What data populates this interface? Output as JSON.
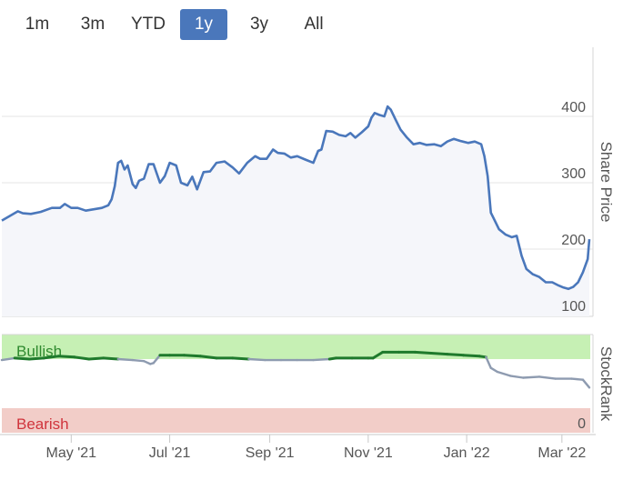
{
  "range_buttons": [
    {
      "label": "1m",
      "active": false
    },
    {
      "label": "3m",
      "active": false
    },
    {
      "label": "YTD",
      "active": false
    },
    {
      "label": "1y",
      "active": true
    },
    {
      "label": "3y",
      "active": false
    },
    {
      "label": "All",
      "active": false
    }
  ],
  "colors": {
    "price_line": "#4a77bb",
    "price_fill": "#f5f6fa",
    "bullish_band": "#c6f0b4",
    "bearish_band": "#f2cdc8",
    "bullish_text": "#2f8a2f",
    "bearish_text": "#d0343c",
    "stockrank_bullish_line": "#1f7a2c",
    "stockrank_neutral_line": "#8e9bb0",
    "active_button": "#4a77bb"
  },
  "chart_data": [
    {
      "type": "area",
      "ylabel": "Share Price",
      "ylim": [
        100,
        460
      ],
      "yticks": [
        100,
        200,
        300,
        400
      ],
      "x_tick_labels": [
        "May '21",
        "Jul '21",
        "Sep '21",
        "Nov '21",
        "Jan '22",
        "Mar '22"
      ],
      "x_tick_dates": [
        "2021-05-01",
        "2021-07-01",
        "2021-09-01",
        "2021-11-01",
        "2022-01-01",
        "2022-03-01"
      ],
      "x_range": [
        "2021-03-19",
        "2022-03-18"
      ],
      "series": [
        {
          "x": [
            "2021-03-19",
            "2021-03-24",
            "2021-03-29",
            "2021-04-01",
            "2021-04-06",
            "2021-04-12",
            "2021-04-19",
            "2021-04-24",
            "2021-04-27",
            "2021-05-01",
            "2021-05-05",
            "2021-05-10",
            "2021-05-15",
            "2021-05-20",
            "2021-05-24",
            "2021-05-26",
            "2021-05-28",
            "2021-05-30",
            "2021-06-01",
            "2021-06-03",
            "2021-06-05",
            "2021-06-08",
            "2021-06-10",
            "2021-06-12",
            "2021-06-15",
            "2021-06-18",
            "2021-06-21",
            "2021-06-25",
            "2021-06-28",
            "2021-07-01",
            "2021-07-05",
            "2021-07-08",
            "2021-07-12",
            "2021-07-15",
            "2021-07-18",
            "2021-07-22",
            "2021-07-26",
            "2021-07-30",
            "2021-08-04",
            "2021-08-09",
            "2021-08-13",
            "2021-08-18",
            "2021-08-23",
            "2021-08-26",
            "2021-08-30",
            "2021-09-03",
            "2021-09-06",
            "2021-09-10",
            "2021-09-14",
            "2021-09-18",
            "2021-09-23",
            "2021-09-28",
            "2021-10-01",
            "2021-10-03",
            "2021-10-06",
            "2021-10-10",
            "2021-10-14",
            "2021-10-18",
            "2021-10-21",
            "2021-10-24",
            "2021-10-28",
            "2021-11-01",
            "2021-11-03",
            "2021-11-05",
            "2021-11-08",
            "2021-11-11",
            "2021-11-13",
            "2021-11-15",
            "2021-11-18",
            "2021-11-21",
            "2021-11-25",
            "2021-11-29",
            "2021-12-03",
            "2021-12-07",
            "2021-12-12",
            "2021-12-16",
            "2021-12-20",
            "2021-12-24",
            "2021-12-28",
            "2022-01-02",
            "2022-01-06",
            "2022-01-10",
            "2022-01-12",
            "2022-01-14",
            "2022-01-16",
            "2022-01-18",
            "2022-01-21",
            "2022-01-25",
            "2022-01-29",
            "2022-02-01",
            "2022-02-04",
            "2022-02-07",
            "2022-02-11",
            "2022-02-15",
            "2022-02-19",
            "2022-02-23",
            "2022-02-27",
            "2022-03-02",
            "2022-03-05",
            "2022-03-08",
            "2022-03-11",
            "2022-03-14",
            "2022-03-17",
            "2022-03-18"
          ],
          "y": [
            243,
            250,
            257,
            254,
            253,
            256,
            262,
            262,
            268,
            262,
            262,
            258,
            260,
            262,
            266,
            275,
            295,
            330,
            333,
            320,
            326,
            298,
            292,
            303,
            306,
            328,
            328,
            300,
            310,
            330,
            326,
            300,
            296,
            309,
            290,
            316,
            317,
            330,
            332,
            323,
            314,
            330,
            340,
            336,
            336,
            350,
            345,
            344,
            338,
            340,
            335,
            330,
            348,
            350,
            378,
            377,
            372,
            370,
            375,
            368,
            376,
            385,
            398,
            405,
            402,
            400,
            415,
            410,
            395,
            380,
            368,
            358,
            360,
            357,
            358,
            355,
            362,
            366,
            363,
            360,
            362,
            358,
            340,
            310,
            255,
            245,
            230,
            222,
            218,
            220,
            190,
            170,
            162,
            158,
            150,
            150,
            145,
            142,
            140,
            143,
            150,
            165,
            185,
            215
          ]
        }
      ]
    },
    {
      "type": "line",
      "ylabel": "StockRank",
      "ylim": [
        0,
        100
      ],
      "bands": [
        {
          "label": "Bullish",
          "from": 75,
          "to": 100
        },
        {
          "label": "Bearish",
          "from": 0,
          "to": 25
        }
      ],
      "ytick_labels": [
        "0"
      ],
      "series": [
        {
          "x": [
            "2021-03-19",
            "2021-03-27",
            "2021-04-05",
            "2021-04-14",
            "2021-04-23",
            "2021-05-03",
            "2021-05-12",
            "2021-05-21",
            "2021-05-30",
            "2021-06-08",
            "2021-06-15",
            "2021-06-19",
            "2021-06-21",
            "2021-06-25",
            "2021-07-01",
            "2021-07-10",
            "2021-07-20",
            "2021-07-30",
            "2021-08-09",
            "2021-08-19",
            "2021-08-29",
            "2021-09-08",
            "2021-09-18",
            "2021-09-28",
            "2021-10-08",
            "2021-10-12",
            "2021-10-22",
            "2021-11-01",
            "2021-11-04",
            "2021-11-10",
            "2021-11-20",
            "2021-11-30",
            "2021-12-10",
            "2021-12-20",
            "2021-12-30",
            "2022-01-09",
            "2022-01-13",
            "2022-01-16",
            "2022-01-20",
            "2022-01-28",
            "2022-02-05",
            "2022-02-15",
            "2022-02-25",
            "2022-03-07",
            "2022-03-14",
            "2022-03-18"
          ],
          "y": [
            74,
            76,
            75,
            76,
            78,
            77,
            75,
            76,
            75,
            74,
            73,
            70,
            71,
            79,
            79,
            79,
            78,
            76,
            76,
            75,
            74,
            74,
            74,
            74,
            75,
            76,
            76,
            76,
            76,
            82,
            82,
            82,
            81,
            80,
            79,
            78,
            77,
            66,
            62,
            58,
            56,
            57,
            55,
            55,
            54,
            46
          ]
        }
      ]
    }
  ]
}
